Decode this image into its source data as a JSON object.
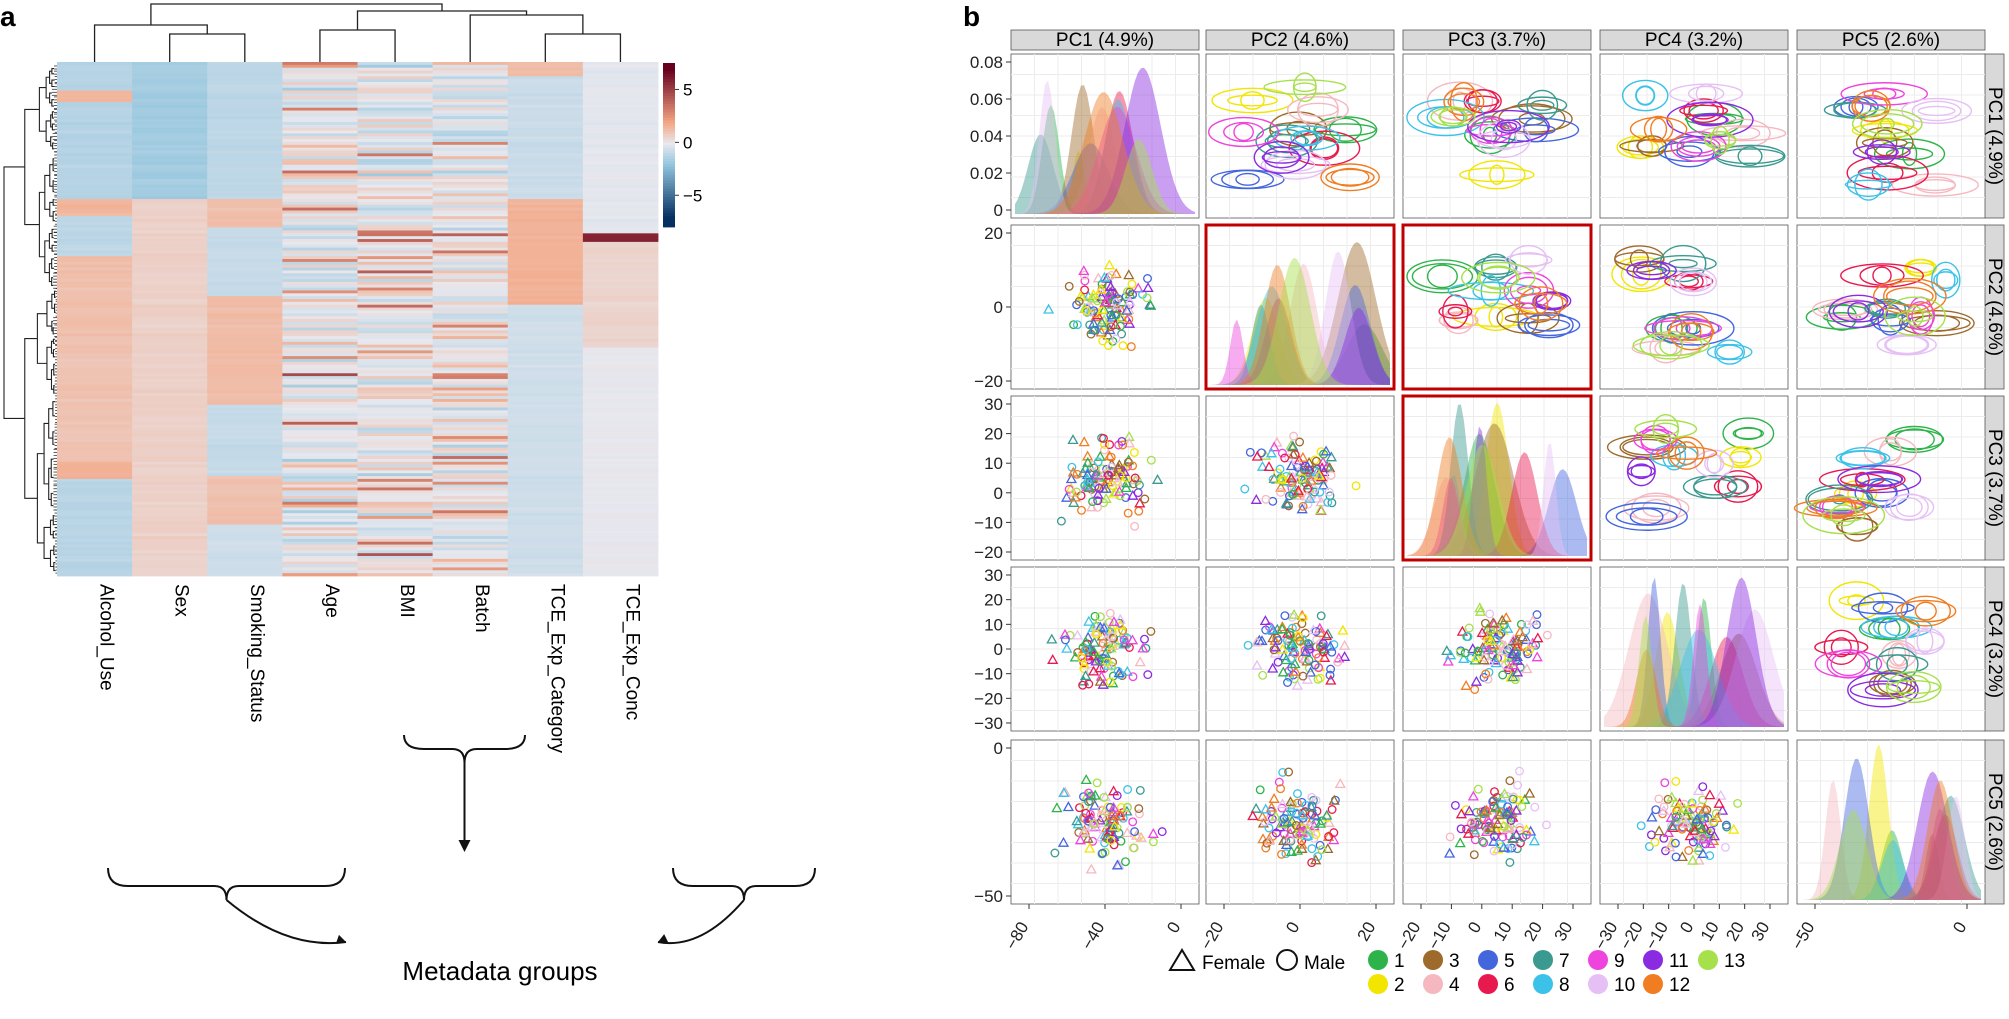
{
  "panel_a": {
    "letter": "a",
    "columns": [
      "Alcohol_Use",
      "Sex",
      "Smoking_Status",
      "Age",
      "BMI",
      "Batch",
      "TCE_Exp_Category",
      "TCE_Exp_Conc"
    ],
    "colorbar_ticks": [
      "5",
      "0",
      "−5"
    ],
    "metadata_label": "Metadata groups",
    "colors": {
      "high": "#67001f",
      "mid": "#e8e8ee",
      "low": "#053061",
      "pos": "#f4a582",
      "neg": "#92c5de"
    }
  },
  "panel_b": {
    "letter": "b",
    "pcs": [
      "PC1 (4.9%)",
      "PC2 (4.6%)",
      "PC3 (3.7%)",
      "PC4 (3.2%)",
      "PC5 (2.6%)"
    ],
    "y_ticks": [
      [
        "0.08",
        "0.06",
        "0.04",
        "0.02",
        "0"
      ],
      [
        "20",
        "0",
        "−20"
      ],
      [
        "30",
        "20",
        "10",
        "0",
        "−10",
        "−20"
      ],
      [
        "30",
        "20",
        "10",
        "0",
        "−10",
        "−20",
        "−30"
      ],
      [
        "0",
        "−50"
      ]
    ],
    "x_ticks": [
      [
        "−80",
        "−40",
        "0"
      ],
      [
        "−20",
        "0",
        "20"
      ],
      [
        "−20",
        "−10",
        "0",
        "10",
        "20",
        "30"
      ],
      [
        "−30",
        "−20",
        "−10",
        "0",
        "10",
        "20",
        "30"
      ],
      [
        "−50",
        "0"
      ]
    ],
    "legend": {
      "shapes": [
        "Female",
        "Male"
      ],
      "groups": [
        {
          "label": "1",
          "color": "#2db34a"
        },
        {
          "label": "2",
          "color": "#f2e600"
        },
        {
          "label": "3",
          "color": "#9e6a2b"
        },
        {
          "label": "4",
          "color": "#f5b8c0"
        },
        {
          "label": "5",
          "color": "#4466dd"
        },
        {
          "label": "6",
          "color": "#e8194f"
        },
        {
          "label": "7",
          "color": "#3a9a8f"
        },
        {
          "label": "8",
          "color": "#3cc2e8"
        },
        {
          "label": "9",
          "color": "#ee44dd"
        },
        {
          "label": "10",
          "color": "#e6c0f5"
        },
        {
          "label": "11",
          "color": "#8a2be2"
        },
        {
          "label": "12",
          "color": "#f07d22"
        },
        {
          "label": "13",
          "color": "#a6e04a"
        }
      ]
    }
  }
}
